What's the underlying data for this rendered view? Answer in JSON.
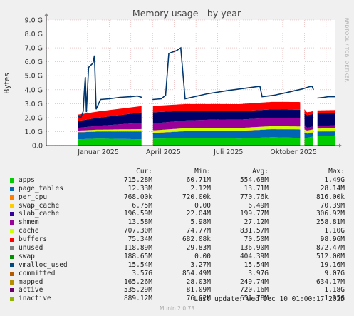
{
  "chart_data": {
    "type": "area",
    "title": "Memory usage - by year",
    "ylabel": "Bytes",
    "side_label": "RRDTOOL / TOBI OETIKER",
    "ylim": [
      0,
      9.0
    ],
    "y_ticks": [
      "0.0",
      "1.0 G",
      "2.0 G",
      "3.0 G",
      "4.0 G",
      "5.0 G",
      "6.0 G",
      "7.0 G",
      "8.0 G",
      "9.0 G"
    ],
    "x_ticks": [
      {
        "label": "Januar 2025",
        "month": 0
      },
      {
        "label": "April 2025",
        "month": 3
      },
      {
        "label": "Juli 2025",
        "month": 6
      },
      {
        "label": "Oktober 2025",
        "month": 9
      }
    ],
    "x_range_months": [
      -1.9,
      11.4
    ],
    "stack_order": [
      "apps",
      "cache",
      "page_tables",
      "slab_cache",
      "buffers",
      "inactive",
      "swap"
    ],
    "gaps": [
      [
        -2.0,
        -0.45
      ],
      [
        2.5,
        3.0
      ],
      [
        9.85,
        10.0
      ],
      [
        10.45,
        10.6
      ]
    ],
    "series": [
      {
        "name": "apps",
        "color": "#00cc00",
        "points": [
          [
            -0.4,
            0.45
          ],
          [
            0.5,
            0.5
          ],
          [
            2.5,
            0.45
          ],
          [
            3.1,
            0.5
          ],
          [
            6.0,
            0.55
          ],
          [
            7.0,
            0.5
          ],
          [
            8.5,
            0.6
          ],
          [
            9.8,
            0.55
          ],
          [
            10.1,
            0.55
          ],
          [
            10.6,
            0.7
          ],
          [
            11.4,
            0.72
          ]
        ]
      },
      {
        "name": "cache",
        "color": "#0066b3",
        "points": [
          [
            -0.4,
            0.5
          ],
          [
            0.5,
            0.5
          ],
          [
            2.5,
            0.55
          ],
          [
            3.1,
            0.4
          ],
          [
            4.5,
            0.5
          ],
          [
            6.0,
            0.5
          ],
          [
            7.5,
            0.55
          ],
          [
            9.8,
            0.6
          ],
          [
            10.1,
            0.3
          ],
          [
            10.6,
            0.3
          ],
          [
            11.4,
            0.3
          ]
        ]
      },
      {
        "name": "page_tables",
        "color": "#ff8000",
        "points": [
          [
            -0.4,
            0.02
          ],
          [
            11.4,
            0.02
          ]
        ]
      },
      {
        "name": "slab_cache",
        "color": "#ccff00",
        "points": [
          [
            -0.4,
            0.1
          ],
          [
            4.5,
            0.2
          ],
          [
            9.8,
            0.2
          ],
          [
            11.4,
            0.2
          ]
        ]
      },
      {
        "name": "buffers",
        "color": "#990099",
        "points": [
          [
            -0.4,
            0.2
          ],
          [
            3.1,
            0.5
          ],
          [
            6.0,
            0.6
          ],
          [
            9.8,
            0.6
          ],
          [
            10.1,
            0.2
          ],
          [
            11.4,
            0.2
          ]
        ]
      },
      {
        "name": "inactive",
        "color": "#000066",
        "points": [
          [
            -0.4,
            0.5
          ],
          [
            3.1,
            0.8
          ],
          [
            6.0,
            0.6
          ],
          [
            9.8,
            0.6
          ],
          [
            10.1,
            0.9
          ],
          [
            11.4,
            0.9
          ]
        ]
      },
      {
        "name": "swap",
        "color": "#ff0000",
        "points": [
          [
            -0.4,
            0.45
          ],
          [
            3.1,
            0.45
          ],
          [
            6.0,
            0.5
          ],
          [
            9.8,
            0.55
          ],
          [
            10.1,
            0.2
          ],
          [
            11.4,
            0.2
          ]
        ]
      },
      {
        "name": "committed",
        "color": "#00366e",
        "points": [
          [
            -0.45,
            2.1
          ],
          [
            -0.3,
            2.0
          ],
          [
            -0.2,
            2.45
          ],
          [
            -0.15,
            3.8
          ],
          [
            -0.1,
            4.9
          ],
          [
            -0.05,
            2.4
          ],
          [
            0.05,
            5.6
          ],
          [
            0.25,
            5.9
          ],
          [
            0.32,
            6.45
          ],
          [
            0.4,
            2.6
          ],
          [
            0.6,
            3.3
          ],
          [
            1.0,
            3.35
          ],
          [
            1.5,
            3.45
          ],
          [
            2.0,
            3.5
          ],
          [
            2.3,
            3.55
          ],
          [
            2.5,
            3.45
          ],
          [
            3.0,
            3.3
          ],
          [
            3.4,
            3.35
          ],
          [
            3.6,
            3.6
          ],
          [
            3.75,
            6.6
          ],
          [
            4.1,
            6.8
          ],
          [
            4.3,
            7.0
          ],
          [
            4.5,
            3.35
          ],
          [
            4.8,
            3.45
          ],
          [
            5.5,
            3.7
          ],
          [
            6.5,
            3.95
          ],
          [
            7.5,
            4.15
          ],
          [
            7.95,
            4.25
          ],
          [
            8.05,
            3.5
          ],
          [
            8.6,
            3.6
          ],
          [
            9.2,
            3.8
          ],
          [
            9.6,
            3.95
          ],
          [
            9.9,
            4.05
          ],
          [
            10.2,
            4.2
          ],
          [
            10.35,
            4.25
          ],
          [
            10.42,
            4.0
          ],
          [
            10.6,
            3.4
          ],
          [
            10.9,
            3.45
          ],
          [
            11.1,
            3.5
          ],
          [
            11.4,
            3.5
          ]
        ]
      }
    ],
    "legend": [
      {
        "name": "apps",
        "color": "#00cc00",
        "cur": "715.28M",
        "min": "60.71M",
        "avg": "554.68M",
        "max": "1.49G"
      },
      {
        "name": "page_tables",
        "color": "#0066b3",
        "cur": "12.33M",
        "min": "2.12M",
        "avg": "13.71M",
        "max": "28.14M"
      },
      {
        "name": "per_cpu",
        "color": "#ff8000",
        "cur": "768.00k",
        "min": "720.00k",
        "avg": "770.76k",
        "max": "816.00k"
      },
      {
        "name": "swap_cache",
        "color": "#ffcc00",
        "cur": "6.75M",
        "min": "0.00",
        "avg": "6.49M",
        "max": "70.39M"
      },
      {
        "name": "slab_cache",
        "color": "#330099",
        "cur": "196.59M",
        "min": "22.04M",
        "avg": "199.77M",
        "max": "306.92M"
      },
      {
        "name": "shmem",
        "color": "#990099",
        "cur": "13.58M",
        "min": "5.98M",
        "avg": "27.12M",
        "max": "258.81M"
      },
      {
        "name": "cache",
        "color": "#ccff00",
        "cur": "707.30M",
        "min": "74.77M",
        "avg": "831.57M",
        "max": "1.10G"
      },
      {
        "name": "buffers",
        "color": "#ff0000",
        "cur": "75.34M",
        "min": "682.08k",
        "avg": "70.50M",
        "max": "98.96M"
      },
      {
        "name": "unused",
        "color": "#808080",
        "cur": "118.89M",
        "min": "29.83M",
        "avg": "136.90M",
        "max": "872.47M"
      },
      {
        "name": "swap",
        "color": "#008f00",
        "cur": "188.65M",
        "min": "0.00",
        "avg": "404.39M",
        "max": "512.00M"
      },
      {
        "name": "vmalloc_used",
        "color": "#00487d",
        "cur": "15.54M",
        "min": "3.27M",
        "avg": "15.54M",
        "max": "19.16M"
      },
      {
        "name": "committed",
        "color": "#b35a00",
        "cur": "3.57G",
        "min": "854.49M",
        "avg": "3.97G",
        "max": "9.07G"
      },
      {
        "name": "mapped",
        "color": "#b38f00",
        "cur": "165.26M",
        "min": "28.03M",
        "avg": "249.74M",
        "max": "634.17M"
      },
      {
        "name": "active",
        "color": "#6b006b",
        "cur": "535.29M",
        "min": "81.09M",
        "avg": "720.16M",
        "max": "1.18G"
      },
      {
        "name": "inactive",
        "color": "#8fb300",
        "cur": "889.12M",
        "min": "76.62M",
        "avg": "656.78M",
        "max": "1.35G"
      }
    ],
    "legend_headers": {
      "cur": "Cur:",
      "min": "Min:",
      "avg": "Avg:",
      "max": "Max:"
    },
    "last_update": "Last update: Wed Dec 10 01:00:17 2025",
    "version": "Munin 2.0.73"
  }
}
